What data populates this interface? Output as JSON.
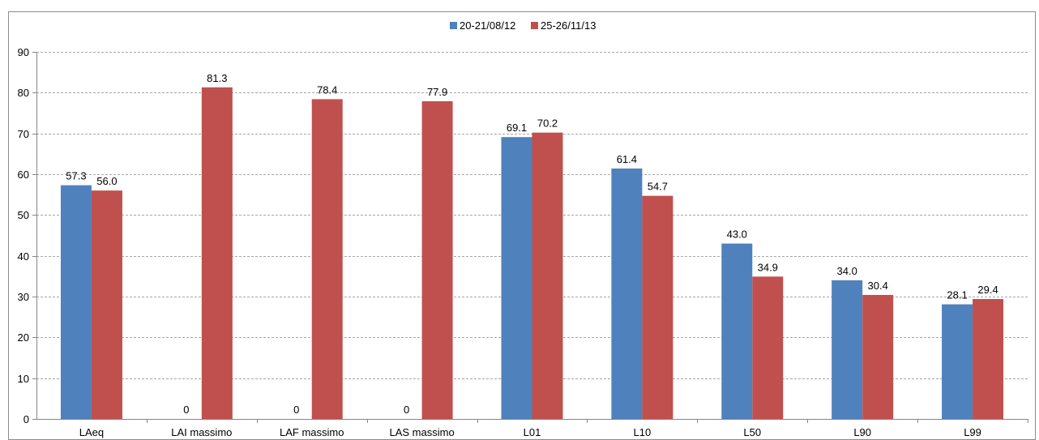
{
  "chart_data": {
    "type": "bar",
    "categories": [
      "LAeq",
      "LAI massimo",
      "LAF massimo",
      "LAS massimo",
      "L01",
      "L10",
      "L50",
      "L90",
      "L99"
    ],
    "series": [
      {
        "name": "20-21/08/12",
        "color": "#4F81BD",
        "values": [
          57.3,
          0,
          0,
          0,
          69.1,
          61.4,
          43.0,
          34.0,
          28.1
        ],
        "labels": [
          "57.3",
          "0",
          "0",
          "0",
          "69.1",
          "61.4",
          "43.0",
          "34.0",
          "28.1"
        ]
      },
      {
        "name": "25-26/11/13",
        "color": "#C0504D",
        "values": [
          56.0,
          81.3,
          78.4,
          77.9,
          70.2,
          54.7,
          34.9,
          30.4,
          29.4
        ],
        "labels": [
          "56.0",
          "81.3",
          "78.4",
          "77.9",
          "70.2",
          "54.7",
          "34.9",
          "30.4",
          "29.4"
        ]
      }
    ],
    "ylim": [
      0,
      90
    ],
    "yticks": [
      0,
      10,
      20,
      30,
      40,
      50,
      60,
      70,
      80,
      90
    ],
    "grid": true,
    "legend_position": "top-center",
    "title": "",
    "xlabel": "",
    "ylabel": ""
  }
}
